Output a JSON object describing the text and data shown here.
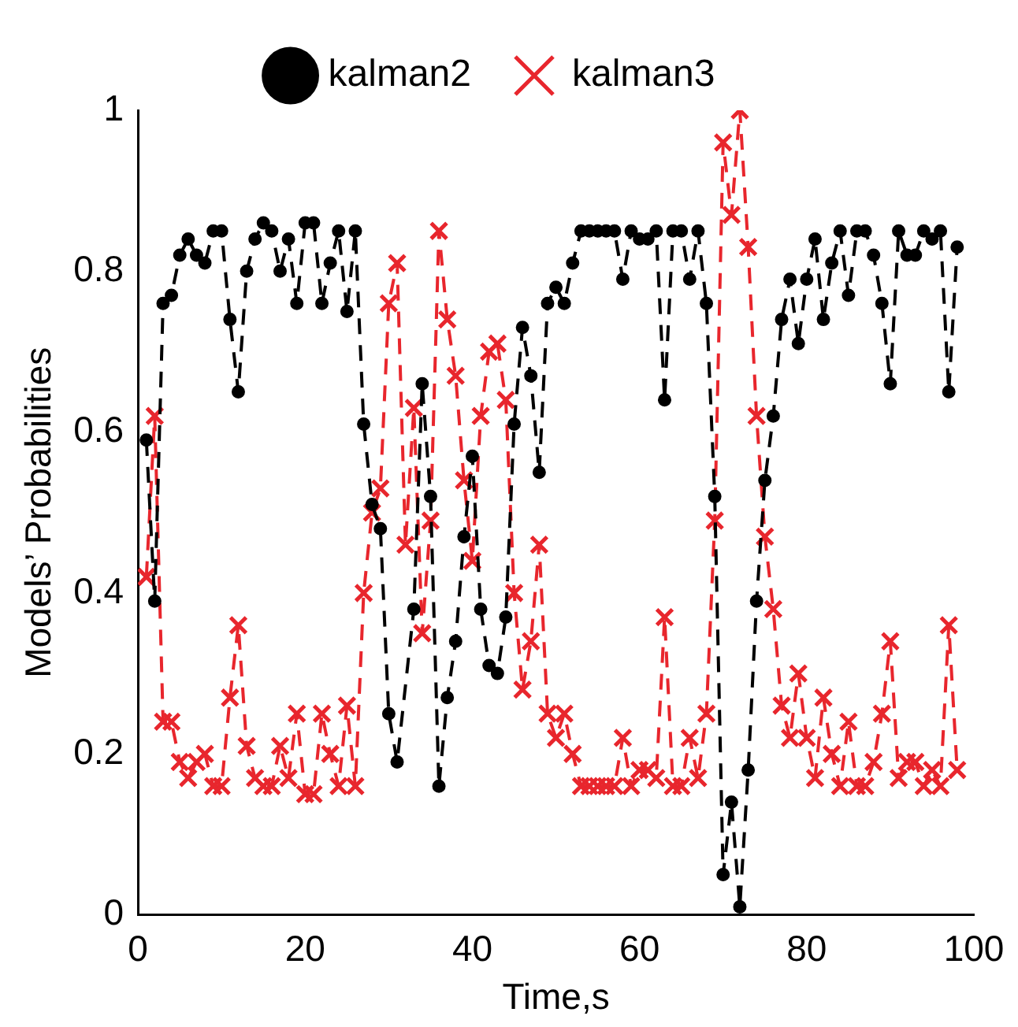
{
  "chart_data": {
    "type": "line",
    "xlabel": "Time,s",
    "ylabel": "Models’ Probabilities",
    "xlim": [
      0,
      100
    ],
    "xticks": [
      0,
      20,
      40,
      60,
      80,
      100
    ],
    "ylim": [
      0,
      1
    ],
    "yticks": [
      0,
      0.2,
      0.4,
      0.6,
      0.8,
      1
    ],
    "grid": false,
    "legend": "top",
    "line_style": "dashed",
    "series": [
      {
        "name": "kalman2",
        "color": "#000000",
        "marker": "circle",
        "x": [
          1,
          2,
          3,
          4,
          5,
          6,
          7,
          8,
          9,
          10,
          11,
          12,
          13,
          14,
          15,
          16,
          17,
          18,
          19,
          20,
          21,
          22,
          23,
          24,
          25,
          26,
          27,
          28,
          29,
          30,
          31,
          33,
          34,
          35,
          36,
          37,
          38,
          39,
          40,
          41,
          42,
          43,
          44,
          45,
          46,
          47,
          48,
          49,
          50,
          51,
          52,
          53,
          54,
          55,
          56,
          57,
          58,
          59,
          60,
          61,
          62,
          63,
          64,
          65,
          66,
          67,
          68,
          69,
          70,
          71,
          72,
          73,
          74,
          75,
          76,
          77,
          78,
          79,
          80,
          81,
          82,
          83,
          84,
          85,
          86,
          87,
          88,
          89,
          90,
          91,
          92,
          93,
          94,
          95,
          96,
          97,
          98
        ],
        "values": [
          0.59,
          0.39,
          0.76,
          0.77,
          0.82,
          0.84,
          0.82,
          0.81,
          0.85,
          0.85,
          0.74,
          0.65,
          0.8,
          0.84,
          0.86,
          0.85,
          0.8,
          0.84,
          0.76,
          0.86,
          0.86,
          0.76,
          0.81,
          0.85,
          0.75,
          0.85,
          0.61,
          0.51,
          0.48,
          0.25,
          0.19,
          0.38,
          0.66,
          0.52,
          0.16,
          0.27,
          0.34,
          0.47,
          0.57,
          0.38,
          0.31,
          0.3,
          0.37,
          0.61,
          0.73,
          0.67,
          0.55,
          0.76,
          0.78,
          0.76,
          0.81,
          0.85,
          0.85,
          0.85,
          0.85,
          0.85,
          0.79,
          0.85,
          0.84,
          0.84,
          0.85,
          0.64,
          0.85,
          0.85,
          0.79,
          0.85,
          0.76,
          0.52,
          0.05,
          0.14,
          0.01,
          0.18,
          0.39,
          0.54,
          0.62,
          0.74,
          0.79,
          0.71,
          0.79,
          0.84,
          0.74,
          0.81,
          0.85,
          0.77,
          0.85,
          0.85,
          0.82,
          0.76,
          0.66,
          0.85,
          0.82,
          0.82,
          0.85,
          0.84,
          0.85,
          0.65,
          0.83
        ]
      },
      {
        "name": "kalman3",
        "color": "#e8262d",
        "marker": "cross",
        "x": [
          1,
          2,
          3,
          4,
          5,
          6,
          7,
          8,
          9,
          10,
          11,
          12,
          13,
          14,
          15,
          16,
          17,
          18,
          19,
          20,
          21,
          22,
          23,
          24,
          25,
          26,
          27,
          28,
          29,
          30,
          31,
          32,
          33,
          34,
          35,
          36,
          37,
          38,
          39,
          40,
          41,
          42,
          43,
          44,
          45,
          46,
          47,
          48,
          49,
          50,
          51,
          52,
          53,
          54,
          55,
          56,
          57,
          58,
          59,
          60,
          61,
          62,
          63,
          64,
          65,
          66,
          67,
          68,
          69,
          70,
          71,
          72,
          73,
          74,
          75,
          76,
          77,
          78,
          79,
          80,
          81,
          82,
          83,
          84,
          85,
          86,
          87,
          88,
          89,
          90,
          91,
          92,
          93,
          94,
          95,
          96,
          97,
          98
        ],
        "values": [
          0.42,
          0.62,
          0.24,
          0.24,
          0.19,
          0.17,
          0.19,
          0.2,
          0.16,
          0.16,
          0.27,
          0.36,
          0.21,
          0.17,
          0.16,
          0.16,
          0.21,
          0.17,
          0.25,
          0.15,
          0.15,
          0.25,
          0.2,
          0.16,
          0.26,
          0.16,
          0.4,
          0.5,
          0.53,
          0.76,
          0.81,
          0.46,
          0.63,
          0.35,
          0.49,
          0.85,
          0.74,
          0.67,
          0.54,
          0.44,
          0.62,
          0.7,
          0.71,
          0.64,
          0.4,
          0.28,
          0.34,
          0.46,
          0.25,
          0.22,
          0.25,
          0.2,
          0.16,
          0.16,
          0.16,
          0.16,
          0.16,
          0.22,
          0.16,
          0.18,
          0.18,
          0.17,
          0.37,
          0.16,
          0.16,
          0.22,
          0.17,
          0.25,
          0.49,
          0.96,
          0.87,
          1.0,
          0.83,
          0.62,
          0.47,
          0.38,
          0.26,
          0.22,
          0.3,
          0.22,
          0.17,
          0.27,
          0.2,
          0.16,
          0.24,
          0.16,
          0.16,
          0.19,
          0.25,
          0.34,
          0.17,
          0.19,
          0.19,
          0.16,
          0.18,
          0.16,
          0.36,
          0.18
        ]
      }
    ]
  }
}
